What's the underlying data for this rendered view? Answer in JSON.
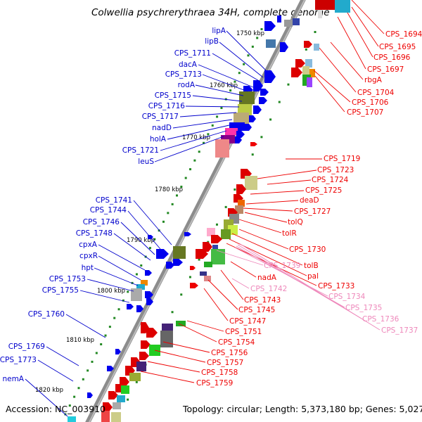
{
  "title": "Colwellia psychrerythraea 34H, complete genome",
  "footer": {
    "accession": "Accession: NC_003910",
    "summary": "Topology: circular; Length: 5,373,180 bp; Genes: 5,027"
  },
  "kbp_ticks": [
    "1750 kbp",
    "1760 kbp",
    "1770 kbp",
    "1780 kbp",
    "1790 kbp",
    "1800 kbp",
    "1810 kbp",
    "1820 kbp"
  ],
  "colors": {
    "plus_strand_label": "#0000cc",
    "minus_strand_label": "#ee0000",
    "pseudo_label": "#ee88bb",
    "backbone": "#888888",
    "tick_dots": "#228822"
  },
  "left_labels": [
    "lipA",
    "lipB",
    "CPS_1711",
    "dacA",
    "CPS_1713",
    "rodA",
    "CPS_1715",
    "CPS_1716",
    "CPS_1717",
    "nadD",
    "holA",
    "CPS_1721",
    "leuS",
    "CPS_1741",
    "CPS_1744",
    "CPS_1746",
    "CPS_1748",
    "cpxA",
    "cpxR",
    "hpt",
    "CPS_1753",
    "CPS_1755",
    "CPS_1760",
    "CPS_1769",
    "CPS_1773",
    "nemA"
  ],
  "right_labels_top": [
    "CPS_1694",
    "CPS_1695",
    "CPS_1696",
    "CPS_1697",
    "rbgA",
    "CPS_1704",
    "CPS_1706",
    "CPS_1707"
  ],
  "right_labels_mid": [
    "CPS_1719",
    "CPS_1723",
    "CPS_1724",
    "CPS_1725",
    "deaD",
    "CPS_1727",
    "tolQ",
    "tolR",
    "CPS_1730",
    "tolB",
    "pal",
    "CPS_1733"
  ],
  "pink_labels": [
    "CPS_1739",
    "CPS_1742",
    "CPS_1734",
    "CPS_1735",
    "CPS_1736",
    "CPS_1737"
  ],
  "center_labels": [
    "nadA",
    "CPS_1743",
    "CPS_1745",
    "CPS_1747",
    "CPS_1751",
    "CPS_1754",
    "CPS_1756",
    "CPS_1757",
    "CPS_1758",
    "CPS_1759"
  ]
}
